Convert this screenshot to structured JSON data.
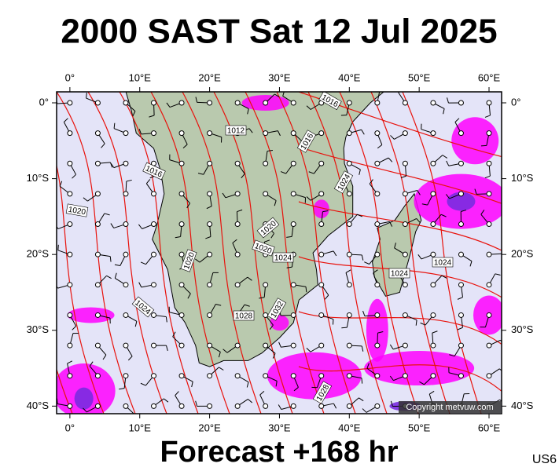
{
  "header": {
    "title": "2000 SAST Sat 12 Jul 2025"
  },
  "map": {
    "xlim": [
      -1.9,
      61.8
    ],
    "ylim": [
      1.45,
      -41
    ],
    "lon_ticks": [
      {
        "value": 0,
        "label": "0°"
      },
      {
        "value": 10,
        "label": "10°E"
      },
      {
        "value": 20,
        "label": "20°E"
      },
      {
        "value": 30,
        "label": "30°E"
      },
      {
        "value": 40,
        "label": "40°E"
      },
      {
        "value": 50,
        "label": "50°E"
      },
      {
        "value": 60,
        "label": "60°E"
      }
    ],
    "lat_ticks": [
      {
        "value": 0,
        "label": "0°"
      },
      {
        "value": -10,
        "label": "10°S"
      },
      {
        "value": -20,
        "label": "20°S"
      },
      {
        "value": -30,
        "label": "30°S"
      },
      {
        "value": -40,
        "label": "40°S"
      }
    ],
    "isobar_labels": [
      1016,
      1012,
      1016,
      1016,
      1024,
      1020,
      1020,
      1020,
      1024,
      1024,
      1024,
      1020,
      1024,
      1028,
      1032,
      1028
    ],
    "copyright": "Copyright metvuw.com"
  },
  "footer": {
    "forecast": "Forecast +168 hr",
    "code": "US6"
  }
}
